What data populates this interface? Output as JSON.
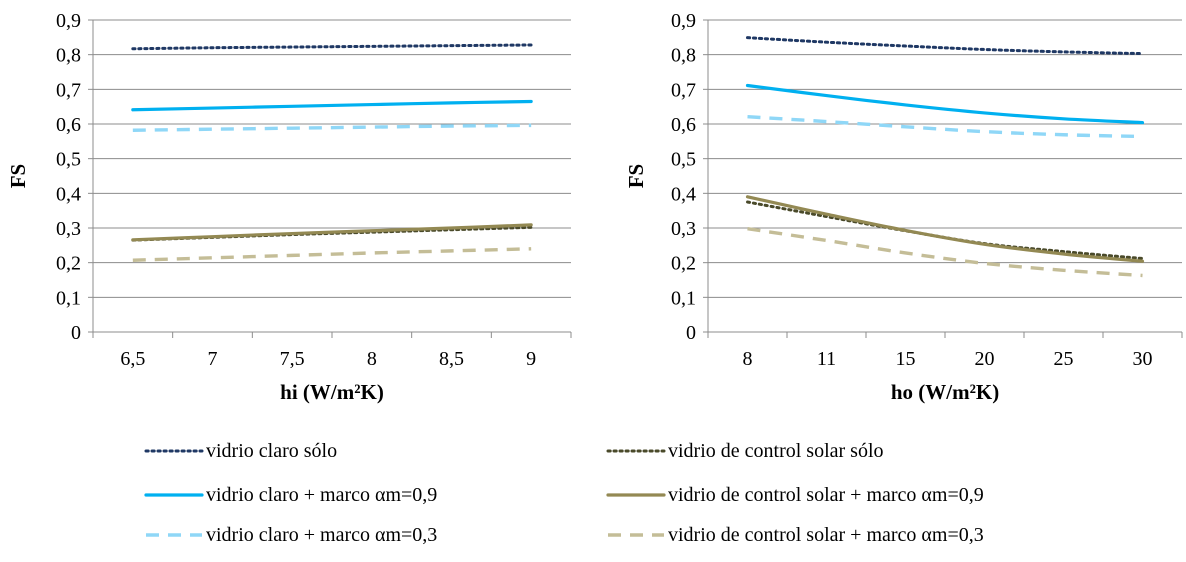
{
  "chart_data": [
    {
      "type": "line",
      "xlabel": "hi (W/m²K)",
      "ylabel": "FS",
      "categories": [
        "6,5",
        "7",
        "7,5",
        "8",
        "8,5",
        "9"
      ],
      "ylim": [
        0,
        0.9
      ],
      "yticks": [
        "0",
        "0,1",
        "0,2",
        "0,3",
        "0,4",
        "0,5",
        "0,6",
        "0,7",
        "0,8",
        "0,9"
      ],
      "grid": true,
      "series": [
        {
          "name": "vidrio claro sólo",
          "values": [
            0.817,
            0.82,
            0.822,
            0.824,
            0.826,
            0.828
          ],
          "color": "#1f3864",
          "style": "dotted"
        },
        {
          "name": "vidrio claro + marco αm=0,9",
          "values": [
            0.641,
            0.646,
            0.651,
            0.656,
            0.661,
            0.665
          ],
          "color": "#00b0f0",
          "style": "solid"
        },
        {
          "name": "vidrio claro + marco αm=0,3",
          "values": [
            0.582,
            0.585,
            0.588,
            0.591,
            0.594,
            0.596
          ],
          "color": "#8fd7f7",
          "style": "dashed"
        },
        {
          "name": "vidrio de control solar sólo",
          "values": [
            0.265,
            0.273,
            0.281,
            0.288,
            0.295,
            0.302
          ],
          "color": "#4a4a2a",
          "style": "dotted"
        },
        {
          "name": "vidrio de control solar + marco αm=0,9",
          "values": [
            0.266,
            0.275,
            0.284,
            0.292,
            0.3,
            0.309
          ],
          "color": "#938953",
          "style": "solid"
        },
        {
          "name": "vidrio de control solar + marco αm=0,3",
          "values": [
            0.207,
            0.214,
            0.221,
            0.228,
            0.234,
            0.24
          ],
          "color": "#c4bd97",
          "style": "dashed"
        }
      ]
    },
    {
      "type": "line",
      "xlabel": "ho (W/m²K)",
      "ylabel": "FS",
      "categories": [
        "8",
        "11",
        "15",
        "20",
        "25",
        "30"
      ],
      "ylim": [
        0,
        0.9
      ],
      "yticks": [
        "0",
        "0,1",
        "0,2",
        "0,3",
        "0,4",
        "0,5",
        "0,6",
        "0,7",
        "0,8",
        "0,9"
      ],
      "grid": true,
      "series": [
        {
          "name": "vidrio claro sólo",
          "values": [
            0.849,
            0.836,
            0.825,
            0.815,
            0.808,
            0.803
          ],
          "color": "#1f3864",
          "style": "dotted"
        },
        {
          "name": "vidrio claro + marco αm=0,9",
          "values": [
            0.711,
            0.682,
            0.655,
            0.632,
            0.615,
            0.604
          ],
          "color": "#00b0f0",
          "style": "solid"
        },
        {
          "name": "vidrio claro + marco αm=0,3",
          "values": [
            0.621,
            0.607,
            0.592,
            0.578,
            0.569,
            0.564
          ],
          "color": "#8fd7f7",
          "style": "dashed"
        },
        {
          "name": "vidrio de control solar sólo",
          "values": [
            0.375,
            0.333,
            0.292,
            0.255,
            0.232,
            0.212
          ],
          "color": "#4a4a2a",
          "style": "dotted"
        },
        {
          "name": "vidrio de control solar + marco αm=0,9",
          "values": [
            0.39,
            0.34,
            0.293,
            0.253,
            0.225,
            0.204
          ],
          "color": "#938953",
          "style": "solid"
        },
        {
          "name": "vidrio de control solar + marco αm=0,3",
          "values": [
            0.298,
            0.264,
            0.228,
            0.198,
            0.178,
            0.163
          ],
          "color": "#c4bd97",
          "style": "dashed"
        }
      ]
    }
  ],
  "legend": {
    "items": [
      {
        "label": "vidrio claro sólo",
        "color": "#1f3864",
        "style": "dotted"
      },
      {
        "label": "vidrio de control solar sólo",
        "color": "#4a4a2a",
        "style": "dotted"
      },
      {
        "label": "vidrio claro + marco αm=0,9",
        "color": "#00b0f0",
        "style": "solid"
      },
      {
        "label": "vidrio de control solar + marco αm=0,9",
        "color": "#938953",
        "style": "solid"
      },
      {
        "label": "vidrio claro + marco αm=0,3",
        "color": "#8fd7f7",
        "style": "dashed"
      },
      {
        "label": "vidrio de control solar + marco αm=0,3",
        "color": "#c4bd97",
        "style": "dashed"
      }
    ]
  }
}
